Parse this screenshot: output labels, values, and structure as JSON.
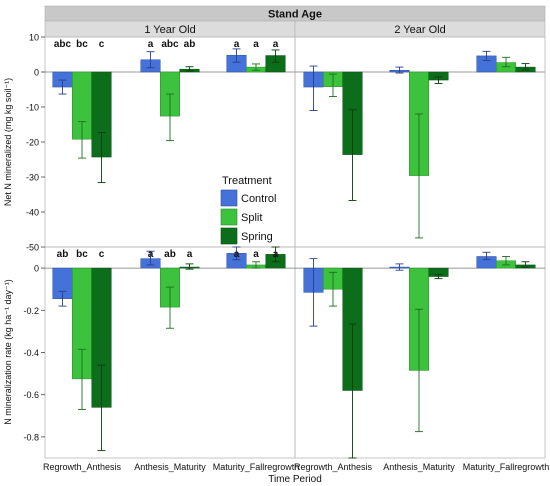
{
  "chart_data": {
    "type": "bar",
    "title": "Stand Age",
    "xlabel": "Time Period",
    "ylabels": [
      "Net N mineralized (mg kg soil⁻¹)",
      "N mineralization rate (kg ha⁻¹ day⁻¹)"
    ],
    "facets": [
      "1 Year Old",
      "2 Year Old"
    ],
    "categories": [
      "Regrowth_Anthesis",
      "Anthesis_Maturity",
      "Maturity_Fallregrowth"
    ],
    "legend": {
      "title": "Treatment",
      "entries": [
        "Control",
        "Split",
        "Spring"
      ],
      "placement": "center-left of right facet"
    },
    "colors": {
      "Control": "#4472d8",
      "Split": "#3cc23c",
      "Spring": "#0c6e1a"
    },
    "rows": [
      {
        "ylim": [
          -50,
          10
        ],
        "yticks": [
          10,
          0,
          -10,
          -20,
          -30,
          -40,
          -50
        ],
        "panels": [
          {
            "facet": "1 Year Old",
            "series": [
              {
                "name": "Control",
                "values": [
                  -4.3,
                  3.5,
                  4.8
                ],
                "err_low": [
                  -6.3,
                  1.2,
                  2.8
                ],
                "err_high": [
                  -2.3,
                  5.8,
                  6.6
                ]
              },
              {
                "name": "Split",
                "values": [
                  -19.2,
                  -12.6,
                  1.4
                ],
                "err_low": [
                  -24.6,
                  -19.6,
                  0.5
                ],
                "err_high": [
                  -14.2,
                  -6.3,
                  2.3
                ]
              },
              {
                "name": "Spring",
                "values": [
                  -24.3,
                  0.8,
                  4.7
                ],
                "err_low": [
                  -31.6,
                  0.3,
                  2.8
                ],
                "err_high": [
                  -17.3,
                  1.5,
                  6.3
                ]
              }
            ],
            "letters": [
              [
                "abc",
                "bc",
                "c"
              ],
              [
                "a",
                "abc",
                "ab"
              ],
              [
                "a",
                "a",
                "a"
              ]
            ]
          },
          {
            "facet": "2 Year Old",
            "series": [
              {
                "name": "Control",
                "values": [
                  -4.3,
                  0.5,
                  4.6
                ],
                "err_low": [
                  -11.0,
                  -0.3,
                  3.3
                ],
                "err_high": [
                  1.7,
                  1.4,
                  5.9
                ]
              },
              {
                "name": "Split",
                "values": [
                  -4.2,
                  -29.6,
                  2.7
                ],
                "err_low": [
                  -7.0,
                  -47.4,
                  1.5
                ],
                "err_high": [
                  -0.6,
                  -12.0,
                  4.2
                ]
              },
              {
                "name": "Spring",
                "values": [
                  -23.6,
                  -2.3,
                  1.4
                ],
                "err_low": [
                  -36.7,
                  -3.3,
                  0.6
                ],
                "err_high": [
                  -10.8,
                  -1.4,
                  2.4
                ]
              }
            ],
            "letters": [
              [
                "",
                "",
                ""
              ],
              [
                "",
                "",
                ""
              ],
              [
                "",
                "",
                ""
              ]
            ]
          }
        ]
      },
      {
        "ylim": [
          -0.9,
          0.1
        ],
        "yticks": [
          0,
          -0.2,
          -0.4,
          -0.6,
          -0.8
        ],
        "panels": [
          {
            "facet": "1 Year Old",
            "series": [
              {
                "name": "Control",
                "values": [
                  -0.145,
                  0.045,
                  0.07
                ],
                "err_low": [
                  -0.18,
                  0.015,
                  0.04
                ],
                "err_high": [
                  -0.11,
                  0.08,
                  0.1
                ]
              },
              {
                "name": "Split",
                "values": [
                  -0.525,
                  -0.185,
                  0.015
                ],
                "err_low": [
                  -0.67,
                  -0.285,
                  0.0
                ],
                "err_high": [
                  -0.385,
                  -0.09,
                  0.03
                ]
              },
              {
                "name": "Spring",
                "values": [
                  -0.66,
                  0.005,
                  0.065
                ],
                "err_low": [
                  -0.865,
                  -0.005,
                  0.03
                ],
                "err_high": [
                  -0.46,
                  0.02,
                  0.1
                ]
              }
            ],
            "letters": [
              [
                "ab",
                "bc",
                "c"
              ],
              [
                "a",
                "ab",
                "a"
              ],
              [
                "a",
                "a",
                "a"
              ]
            ]
          },
          {
            "facet": "2 Year Old",
            "series": [
              {
                "name": "Control",
                "values": [
                  -0.115,
                  0.005,
                  0.055
                ],
                "err_low": [
                  -0.275,
                  -0.01,
                  0.04
                ],
                "err_high": [
                  0.045,
                  0.02,
                  0.075
                ]
              },
              {
                "name": "Split",
                "values": [
                  -0.1,
                  -0.485,
                  0.035
                ],
                "err_low": [
                  -0.18,
                  -0.775,
                  0.015
                ],
                "err_high": [
                  -0.02,
                  -0.195,
                  0.055
                ]
              },
              {
                "name": "Spring",
                "values": [
                  -0.58,
                  -0.04,
                  0.015
                ],
                "err_low": [
                  -0.9,
                  -0.05,
                  0.005
                ],
                "err_high": [
                  -0.265,
                  -0.03,
                  0.03
                ]
              }
            ],
            "letters": [
              [
                "",
                "",
                ""
              ],
              [
                "",
                "",
                ""
              ],
              [
                "",
                "",
                ""
              ]
            ]
          }
        ]
      }
    ],
    "grid": false
  }
}
